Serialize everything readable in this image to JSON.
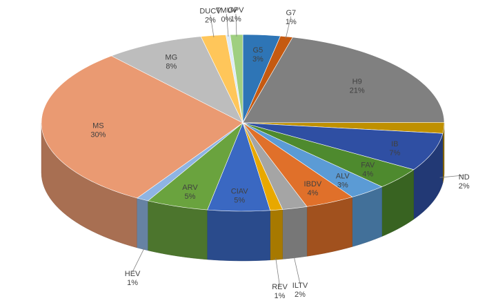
{
  "chart_data": {
    "type": "pie",
    "style": "3d",
    "title": "",
    "start_angle_deg": 0,
    "slices": [
      {
        "label": "G5",
        "percent": "3%",
        "value": 3,
        "color": "#2E75B6"
      },
      {
        "label": "G7",
        "percent": "1%",
        "value": 1,
        "color": "#C55A11"
      },
      {
        "label": "H9",
        "percent": "21%",
        "value": 21,
        "color": "#808080"
      },
      {
        "label": "ND",
        "percent": "2%",
        "value": 2,
        "color": "#BF9000"
      },
      {
        "label": "IB",
        "percent": "7%",
        "value": 7,
        "color": "#2F4FA3"
      },
      {
        "label": "FAV",
        "percent": "4%",
        "value": 4,
        "color": "#4E8A2E"
      },
      {
        "label": "ALV",
        "percent": "3%",
        "value": 3,
        "color": "#5B9BD5"
      },
      {
        "label": "IBDV",
        "percent": "4%",
        "value": 4,
        "color": "#E0702A"
      },
      {
        "label": "ILTV",
        "percent": "2%",
        "value": 2,
        "color": "#A5A5A5"
      },
      {
        "label": "REV",
        "percent": "1%",
        "value": 1,
        "color": "#E8A800"
      },
      {
        "label": "CIAV",
        "percent": "5%",
        "value": 5,
        "color": "#3A68C2"
      },
      {
        "label": "ARV",
        "percent": "5%",
        "value": 5,
        "color": "#6AA33E"
      },
      {
        "label": "HEV",
        "percent": "1%",
        "value": 1,
        "color": "#8EB4E3"
      },
      {
        "label": "MS",
        "percent": "30%",
        "value": 30,
        "color": "#EA9A72"
      },
      {
        "label": "MG",
        "percent": "8%",
        "value": 8,
        "color": "#BDBDBD"
      },
      {
        "label": "DUCV",
        "percent": "2%",
        "value": 2,
        "color": "#FFC65A"
      },
      {
        "label": "TMUV",
        "percent": "0%",
        "value": 0.35,
        "color": "#DDEBF7"
      },
      {
        "label": "GPV",
        "percent": "1%",
        "value": 1,
        "color": "#9FCF80"
      }
    ]
  }
}
